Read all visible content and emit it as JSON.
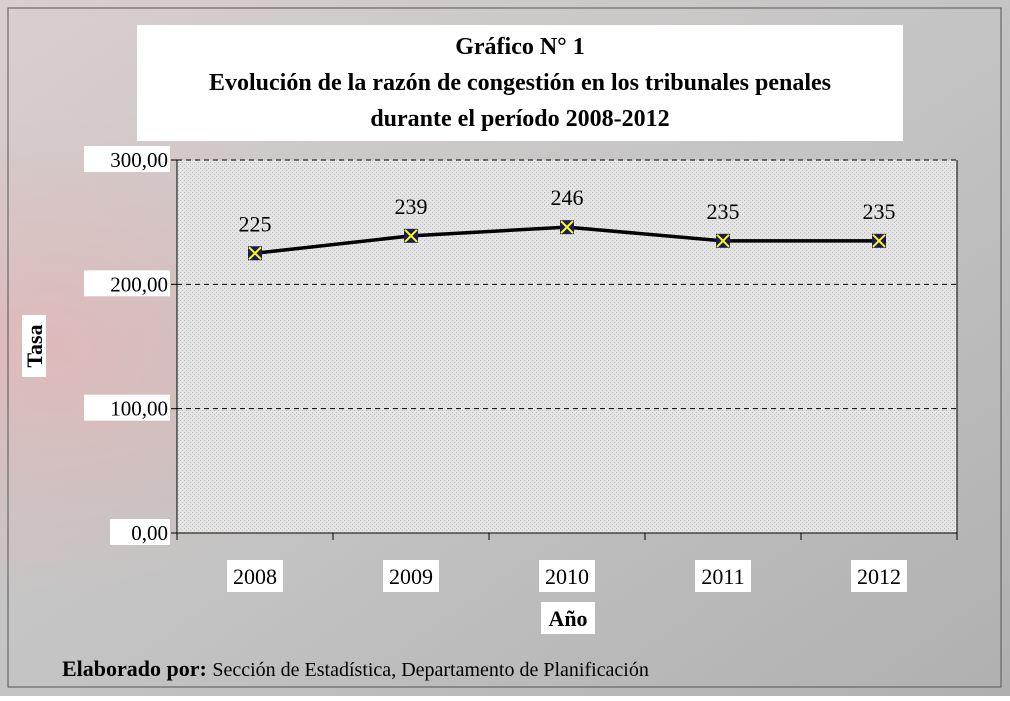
{
  "chart_data": {
    "type": "line",
    "title": [
      "Gráfico N° 1",
      "Evolución de la razón de congestión en los tribunales penales",
      "durante el período 2008-2012"
    ],
    "categories": [
      "2008",
      "2009",
      "2010",
      "2011",
      "2012"
    ],
    "values": [
      225,
      239,
      246,
      235,
      235
    ],
    "color": "#000000",
    "marker_color": "#1a1a5e",
    "ylim": [
      0,
      300
    ],
    "yticks": [
      {
        "value": 0,
        "label": "0,00"
      },
      {
        "value": 100,
        "label": "100,00"
      },
      {
        "value": 200,
        "label": "200,00"
      },
      {
        "value": 300,
        "label": "300,00"
      }
    ],
    "grid": true,
    "ylabel": "Tasa",
    "xlabel": "Año",
    "source_label": "Elaborado por:",
    "source": "Sección de Estadística, Departamento de Planificación"
  }
}
